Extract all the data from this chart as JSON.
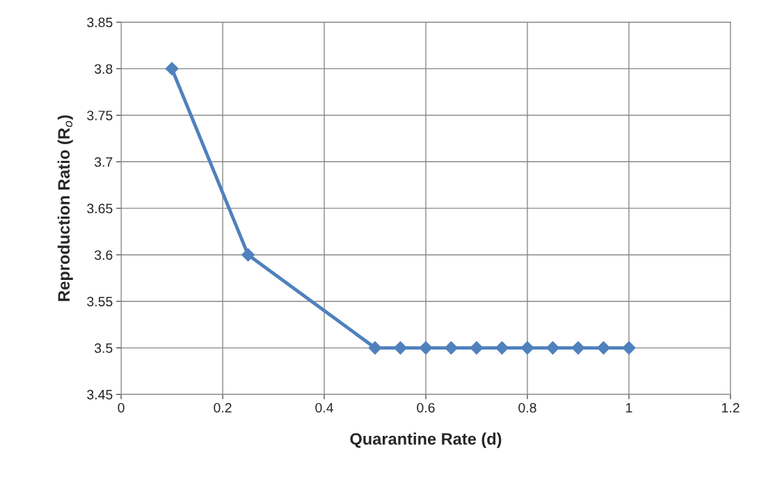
{
  "chart_data": {
    "type": "line",
    "xlabel": "Quarantine Rate (d)",
    "ylabel": "Reproduction Ratio (R$_{o}$)",
    "x": [
      0.1,
      0.25,
      0.5,
      0.55,
      0.6,
      0.65,
      0.7,
      0.75,
      0.8,
      0.85,
      0.9,
      0.95,
      1.0
    ],
    "series": [
      {
        "color": "#4f81bd",
        "values": [
          3.8,
          3.6,
          3.5,
          3.5,
          3.5,
          3.5,
          3.5,
          3.5,
          3.5,
          3.5,
          3.5,
          3.5,
          3.5
        ]
      }
    ],
    "xlim": [
      0,
      1.2
    ],
    "xticks": [
      0,
      0.2,
      0.4,
      0.6,
      0.8,
      1,
      1.2
    ],
    "ylim": [
      3.45,
      3.85
    ],
    "yticks": [
      3.45,
      3.5,
      3.55,
      3.6,
      3.65,
      3.7,
      3.75,
      3.8,
      3.85
    ],
    "grid": true,
    "marker": "diamond",
    "line_style": "solid",
    "legend": false
  }
}
